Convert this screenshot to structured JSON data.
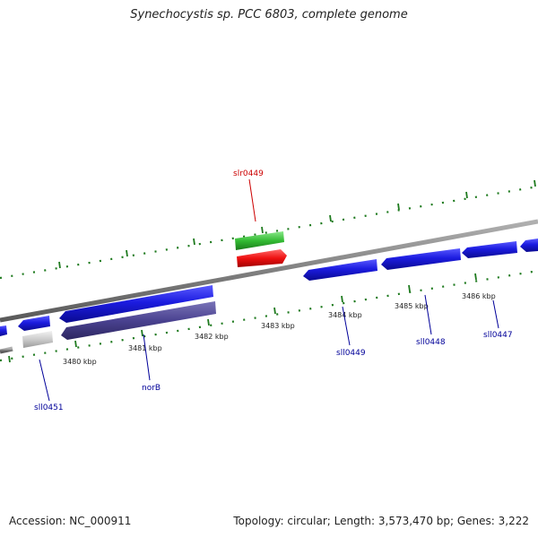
{
  "title": "Synechocystis sp. PCC 6803, complete genome",
  "footer": {
    "accession": "Accession: NC_000911",
    "stats": "Topology: circular; Length: 3,573,470 bp; Genes: 3,222"
  },
  "kbp_labels": [
    "3480 kbp",
    "3481 kbp",
    "3482 kbp",
    "3483 kbp",
    "3484 kbp",
    "3485 kbp",
    "3486 kbp"
  ],
  "genes": [
    {
      "name": "slr0449",
      "strand": "forward",
      "color": "#dd0000",
      "labeled": true
    },
    {
      "name": "sll0451",
      "strand": "reverse",
      "color": "#0000cc",
      "labeled": true
    },
    {
      "name": "norB",
      "strand": "reverse",
      "color": "#0000cc",
      "labeled": true
    },
    {
      "name": "sll0449",
      "strand": "reverse",
      "color": "#0000cc",
      "labeled": true
    },
    {
      "name": "sll0448",
      "strand": "reverse",
      "color": "#0000cc",
      "labeled": true
    },
    {
      "name": "sll0447",
      "strand": "reverse",
      "color": "#0000cc",
      "labeled": true
    }
  ],
  "colors": {
    "cds_blue": "#1c1ce0",
    "cds_purple": "#4a4290",
    "cds_red": "#ee1111",
    "cds_green": "#33bb33",
    "cds_gray": "#cccccc",
    "backbone": "#888888",
    "tick": "#1e7a1e",
    "label_blue": "#000099",
    "label_red": "#cc0000"
  }
}
